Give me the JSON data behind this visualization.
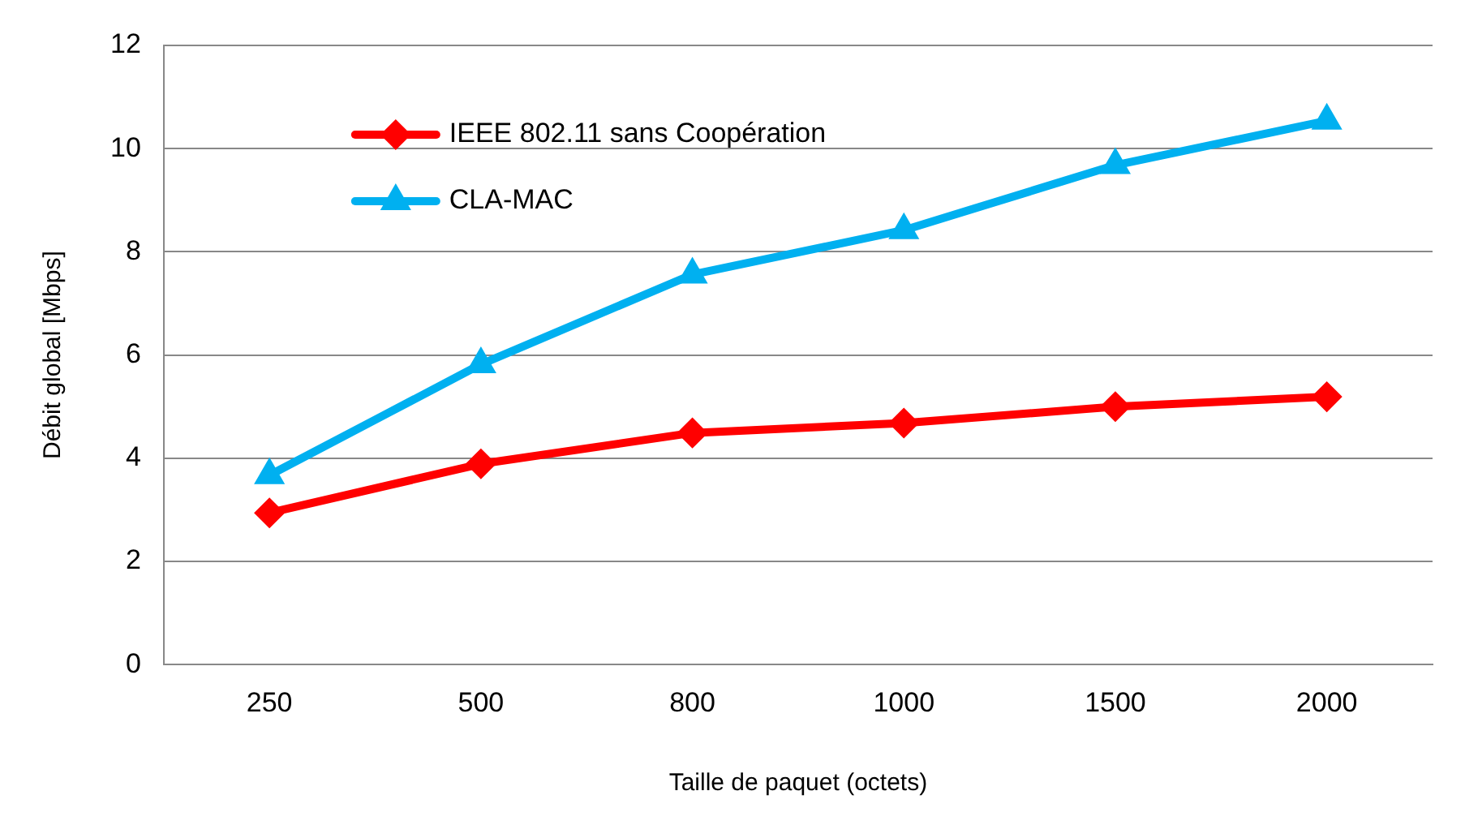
{
  "chart_data": {
    "type": "line",
    "xlabel": "Taille de paquet (octets)",
    "ylabel": "Débit global [Mbps]",
    "categories": [
      "250",
      "500",
      "800",
      "1000",
      "1500",
      "2000"
    ],
    "series": [
      {
        "name": "IEEE 802.11 sans Coopération",
        "color": "#ff0000",
        "marker": "diamond",
        "values": [
          2.94,
          3.89,
          4.49,
          4.68,
          5.0,
          5.19
        ]
      },
      {
        "name": "CLA-MAC",
        "color": "#00b0f0",
        "marker": "triangle",
        "values": [
          3.67,
          5.82,
          7.56,
          8.42,
          9.68,
          10.54
        ]
      }
    ],
    "ylim": [
      0,
      12
    ],
    "yticks": [
      0,
      2,
      4,
      6,
      8,
      10,
      12
    ],
    "grid": "y",
    "legend": "top",
    "line_style": "solid"
  }
}
